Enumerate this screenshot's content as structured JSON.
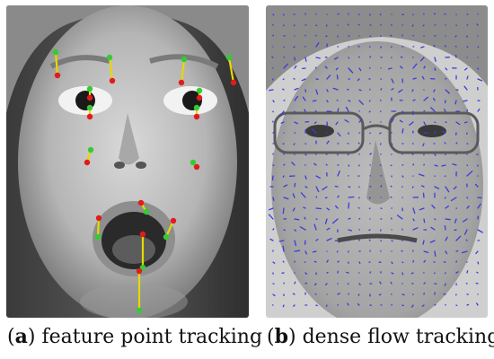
{
  "figure": {
    "panels": [
      {
        "letter": "a",
        "text": "feature point tracking"
      },
      {
        "letter": "b",
        "text": "dense flow tracking"
      }
    ]
  },
  "colors": {
    "point_start": "#e31a1c",
    "point_end": "#33cc33",
    "track_line": "#e6d800",
    "flow_vector": "#3b3bdc"
  },
  "panel_a_tracked_points": 18,
  "panel_b_flow_field": "dense-grid"
}
